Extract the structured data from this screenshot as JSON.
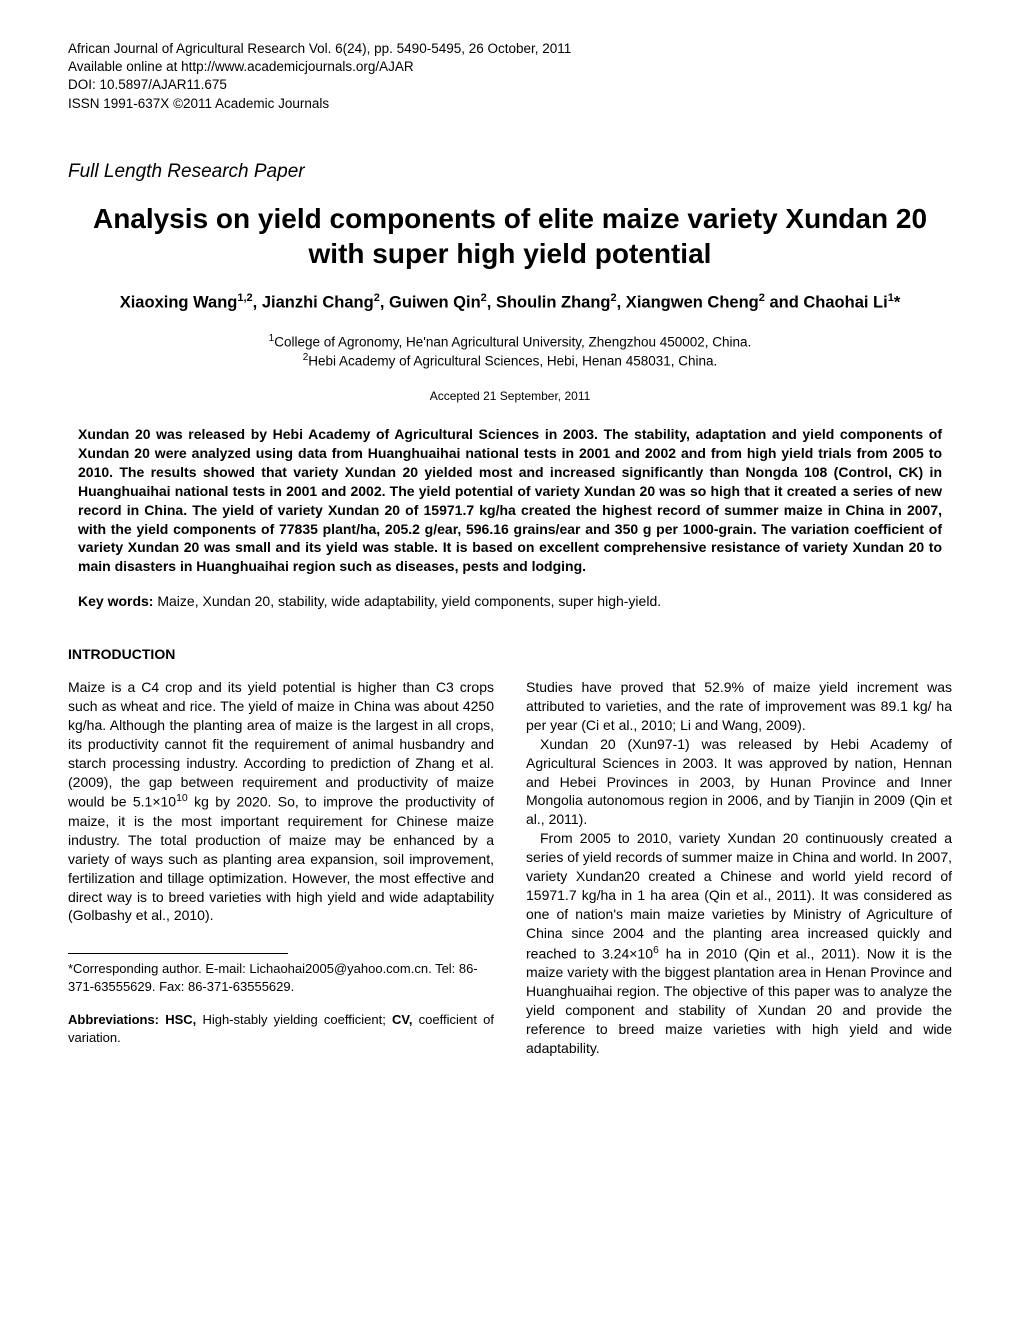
{
  "header": {
    "line1": "African Journal of Agricultural Research Vol. 6(24), pp. 5490-5495, 26 October, 2011",
    "line2": "Available online at http://www.academicjournals.org/AJAR",
    "line3": "DOI: 10.5897/AJAR11.675",
    "line4": "ISSN 1991-637X ©2011 Academic Journals"
  },
  "paper_type": "Full Length Research Paper",
  "title": "Analysis on yield components of elite maize variety Xundan 20 with super high yield potential",
  "authors_html": "Xiaoxing Wang<sup>1,2</sup>, Jianzhi Chang<sup>2</sup>, Guiwen Qin<sup>2</sup>, Shoulin Zhang<sup>2</sup>, Xiangwen Cheng<sup>2</sup> and Chaohai Li<sup>1</sup>*",
  "affiliations_html": "<sup>1</sup>College of Agronomy, He'nan Agricultural University, Zhengzhou 450002, China.<br><sup>2</sup>Hebi Academy of Agricultural Sciences, Hebi, Henan 458031, China.",
  "accepted": "Accepted 21 September, 2011",
  "abstract": "Xundan 20 was released by Hebi Academy of Agricultural Sciences in 2003. The stability, adaptation and yield components of Xundan 20 were analyzed using data from Huanghuaihai national tests in 2001 and 2002 and from high yield trials from 2005 to 2010. The results showed that variety Xundan 20 yielded most and increased significantly than Nongda 108 (Control, CK) in Huanghuaihai national tests in 2001 and 2002. The yield potential of variety Xundan 20 was so high that it created a series of new record in China. The yield of variety Xundan 20 of 15971.7 kg/ha created the highest record of summer maize in China in 2007, with the yield components of 77835 plant/ha, 205.2 g/ear, 596.16 grains/ear and 350 g per 1000-grain. The variation coefficient of variety Xundan 20 was small and its yield was stable. It is based on excellent comprehensive resistance of variety Xundan 20 to main disasters in Huanghuaihai region such as diseases, pests and lodging.",
  "keywords_label": "Key words:",
  "keywords_text": " Maize, Xundan 20, stability, wide adaptability, yield components, super high-yield.",
  "introduction_heading": "INTRODUCTION",
  "col1": {
    "p1_html": "Maize is a C4 crop and its yield potential is higher than C3 crops such as wheat and rice. The yield of maize in China was about 4250 kg/ha. Although the planting area of maize is the largest in all crops, its productivity cannot fit the requirement of animal husbandry and starch processing industry. According to prediction of Zhang et al. (2009), the gap between requirement and productivity of maize would be 5.1×10<sup>10</sup> kg by 2020. So, to improve the productivity of maize, it is the most important requirement for Chinese maize industry. The total production of maize may be enhanced by a variety of ways such as planting area expansion, soil improvement, fertilization and tillage optimization. However, the most effective and direct way is to breed varieties with high yield and wide adaptability (Golbashy et al., 2010).",
    "footnote": "*Corresponding author. E-mail: Lichaohai2005@yahoo.com.cn. Tel: 86-371-63555629. Fax: 86-371-63555629.",
    "abbreviations_html": "<span class=\"bold\">Abbreviations: HSC,</span> High-stably yielding coefficient; <span class=\"bold\">CV,</span> coefficient of variation."
  },
  "col2": {
    "p1": "Studies have proved that 52.9% of maize yield increment was attributed to varieties, and the rate of improvement was 89.1 kg/ ha per year (Ci et al., 2010; Li and Wang, 2009).",
    "p2": "Xundan 20 (Xun97-1) was released by Hebi Academy of Agricultural Sciences in 2003. It was approved by nation, Hennan and Hebei Provinces in 2003, by Hunan Province and Inner Mongolia autonomous region in 2006, and by Tianjin in 2009 (Qin et al., 2011).",
    "p3_html": "From 2005 to 2010, variety Xundan 20 continuously created a series of yield records of summer maize in China and world. In 2007, variety Xundan20 created a Chinese and world yield record of 15971.7 kg/ha in 1 ha area (Qin et al., 2011). It was considered as one of nation's main maize varieties by Ministry of Agriculture of China since 2004 and the planting area increased quickly and reached to 3.24×10<sup>6</sup> ha in 2010 (Qin et al., 2011). Now it is the maize variety with the biggest plantation area in Henan Province and Huanghuaihai region. The objective of this paper was to analyze the yield component and stability of Xundan 20 and provide the reference to breed maize varieties with high yield and wide adaptability."
  }
}
